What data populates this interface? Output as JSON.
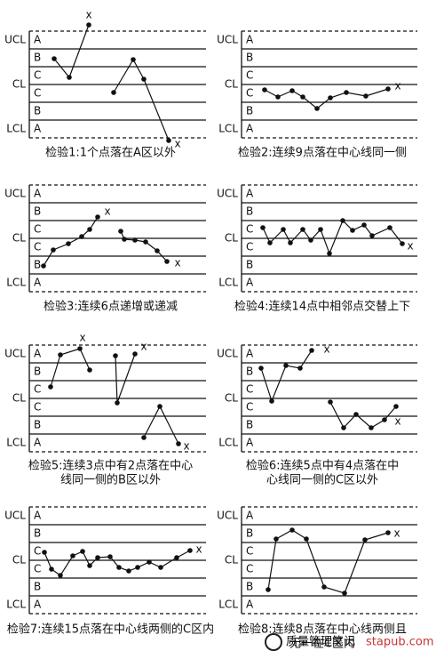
{
  "axis_labels": [
    "UCL",
    "CL",
    "LCL"
  ],
  "zones": [
    "A",
    "B",
    "C",
    "C",
    "B",
    "A"
  ],
  "marker": "x",
  "panels": [
    {
      "caption": [
        "检验1:1个点落在A区以外"
      ]
    },
    {
      "caption": [
        "检验2:连续9点落在中心线同一侧"
      ]
    },
    {
      "caption": [
        "检验3:连续6点递增或递减"
      ]
    },
    {
      "caption": [
        "检验4:连续14点中相邻点交替上下"
      ]
    },
    {
      "caption": [
        "检验5:连续3点中有2点落在中心",
        "线同一侧的B区以外"
      ]
    },
    {
      "caption": [
        "检验6:连续5点中有4点落在中",
        "心线同一侧的C区以外"
      ]
    },
    {
      "caption": [
        "检验7:连续15点落在中心线两侧的C区内"
      ]
    },
    {
      "caption": [
        "检验8:连续8点落在中心线两侧且",
        "无一在C区内"
      ]
    }
  ],
  "footer": {
    "logo": "质量管理笔记",
    "site": "stapub.com"
  }
}
